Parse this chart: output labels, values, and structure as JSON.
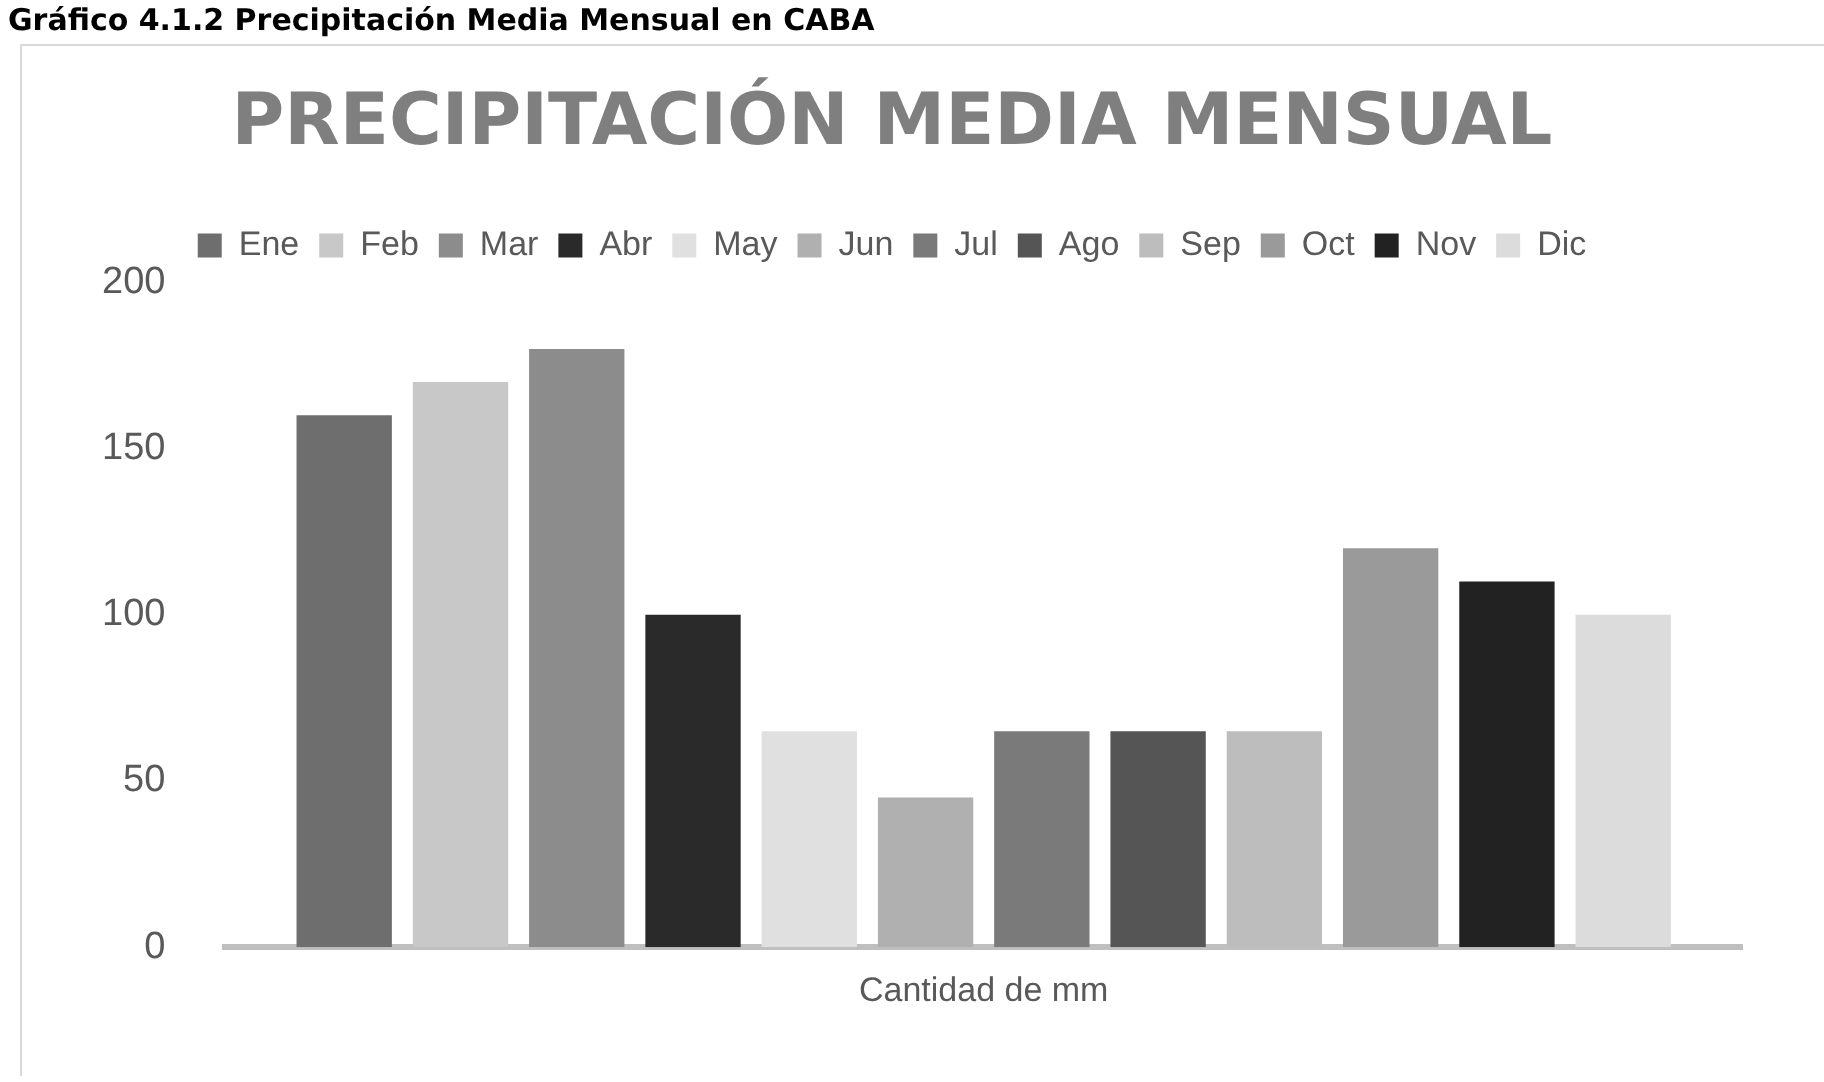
{
  "chart_data": {
    "type": "bar",
    "title": "PRECIPITACIÓN MEDIA MENSUAL",
    "annotations": [
      "Gráfico 4.1.2 Precipitación Media Mensual en CABA"
    ],
    "categories": [
      "Cantidad de mm"
    ],
    "series": [
      {
        "name": "Ene",
        "color": "#6e6e6e",
        "values": [
          160
        ]
      },
      {
        "name": "Feb",
        "color": "#c8c8c8",
        "values": [
          170
        ]
      },
      {
        "name": "Mar",
        "color": "#8c8c8c",
        "values": [
          180
        ]
      },
      {
        "name": "Abr",
        "color": "#2a2a2a",
        "values": [
          100
        ]
      },
      {
        "name": "May",
        "color": "#e0e0e0",
        "values": [
          65
        ]
      },
      {
        "name": "Jun",
        "color": "#b0b0b0",
        "values": [
          45
        ]
      },
      {
        "name": "Jul",
        "color": "#7a7a7a",
        "values": [
          65
        ]
      },
      {
        "name": "Ago",
        "color": "#555555",
        "values": [
          65
        ]
      },
      {
        "name": "Sep",
        "color": "#bdbdbd",
        "values": [
          65
        ]
      },
      {
        "name": "Oct",
        "color": "#9a9a9a",
        "values": [
          120
        ]
      },
      {
        "name": "Nov",
        "color": "#222222",
        "values": [
          110
        ]
      },
      {
        "name": "Dic",
        "color": "#dcdcdc",
        "values": [
          100
        ]
      }
    ],
    "ylim": [
      0,
      200
    ],
    "yticks": [
      0,
      50,
      100,
      150,
      200
    ],
    "grid": false,
    "legend": "top"
  }
}
